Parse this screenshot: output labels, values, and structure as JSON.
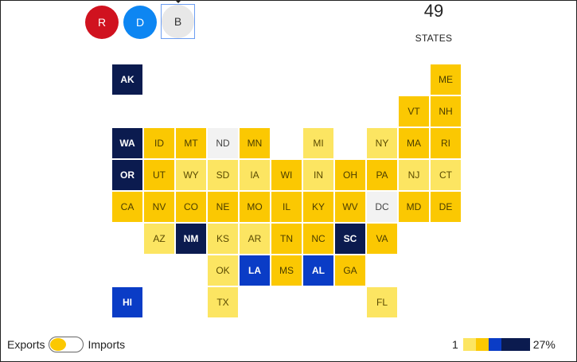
{
  "buttons": {
    "r": "R",
    "d": "D",
    "b": "B"
  },
  "summary": {
    "count": "49",
    "label": "STATES"
  },
  "toggle": {
    "left_label": "Exports",
    "right_label": "Imports",
    "state": "Exports"
  },
  "legend": {
    "min": "1",
    "max": "27%",
    "colors": [
      "#fce562",
      "#fbc802",
      "#0a3cc6",
      "#0b1b4f"
    ]
  },
  "colors": {
    "republican": "#d0121f",
    "democrat": "#0d86f2",
    "no_data": "#f2f2f2"
  },
  "states": [
    {
      "abbr": "AK",
      "row": 0,
      "col": 0,
      "level": 4
    },
    {
      "abbr": "ME",
      "row": 0,
      "col": 10,
      "level": 2
    },
    {
      "abbr": "VT",
      "row": 1,
      "col": 9,
      "level": 2
    },
    {
      "abbr": "NH",
      "row": 1,
      "col": 10,
      "level": 2
    },
    {
      "abbr": "WA",
      "row": 2,
      "col": 0,
      "level": 4
    },
    {
      "abbr": "ID",
      "row": 2,
      "col": 1,
      "level": 2
    },
    {
      "abbr": "MT",
      "row": 2,
      "col": 2,
      "level": 2
    },
    {
      "abbr": "ND",
      "row": 2,
      "col": 3,
      "level": 0
    },
    {
      "abbr": "MN",
      "row": 2,
      "col": 4,
      "level": 2
    },
    {
      "abbr": "MI",
      "row": 2,
      "col": 6,
      "level": 1
    },
    {
      "abbr": "NY",
      "row": 2,
      "col": 8,
      "level": 1
    },
    {
      "abbr": "MA",
      "row": 2,
      "col": 9,
      "level": 2
    },
    {
      "abbr": "RI",
      "row": 2,
      "col": 10,
      "level": 2
    },
    {
      "abbr": "OR",
      "row": 3,
      "col": 0,
      "level": 4
    },
    {
      "abbr": "UT",
      "row": 3,
      "col": 1,
      "level": 2
    },
    {
      "abbr": "WY",
      "row": 3,
      "col": 2,
      "level": 1
    },
    {
      "abbr": "SD",
      "row": 3,
      "col": 3,
      "level": 1
    },
    {
      "abbr": "IA",
      "row": 3,
      "col": 4,
      "level": 1
    },
    {
      "abbr": "WI",
      "row": 3,
      "col": 5,
      "level": 2
    },
    {
      "abbr": "IN",
      "row": 3,
      "col": 6,
      "level": 1
    },
    {
      "abbr": "OH",
      "row": 3,
      "col": 7,
      "level": 2
    },
    {
      "abbr": "PA",
      "row": 3,
      "col": 8,
      "level": 2
    },
    {
      "abbr": "NJ",
      "row": 3,
      "col": 9,
      "level": 1
    },
    {
      "abbr": "CT",
      "row": 3,
      "col": 10,
      "level": 1
    },
    {
      "abbr": "CA",
      "row": 4,
      "col": 0,
      "level": 2
    },
    {
      "abbr": "NV",
      "row": 4,
      "col": 1,
      "level": 2
    },
    {
      "abbr": "CO",
      "row": 4,
      "col": 2,
      "level": 2
    },
    {
      "abbr": "NE",
      "row": 4,
      "col": 3,
      "level": 2
    },
    {
      "abbr": "MO",
      "row": 4,
      "col": 4,
      "level": 2
    },
    {
      "abbr": "IL",
      "row": 4,
      "col": 5,
      "level": 2
    },
    {
      "abbr": "KY",
      "row": 4,
      "col": 6,
      "level": 2
    },
    {
      "abbr": "WV",
      "row": 4,
      "col": 7,
      "level": 2
    },
    {
      "abbr": "DC",
      "row": 4,
      "col": 8,
      "level": 0
    },
    {
      "abbr": "MD",
      "row": 4,
      "col": 9,
      "level": 2
    },
    {
      "abbr": "DE",
      "row": 4,
      "col": 10,
      "level": 2
    },
    {
      "abbr": "AZ",
      "row": 5,
      "col": 1,
      "level": 1
    },
    {
      "abbr": "NM",
      "row": 5,
      "col": 2,
      "level": 4
    },
    {
      "abbr": "KS",
      "row": 5,
      "col": 3,
      "level": 1
    },
    {
      "abbr": "AR",
      "row": 5,
      "col": 4,
      "level": 1
    },
    {
      "abbr": "TN",
      "row": 5,
      "col": 5,
      "level": 2
    },
    {
      "abbr": "NC",
      "row": 5,
      "col": 6,
      "level": 2
    },
    {
      "abbr": "SC",
      "row": 5,
      "col": 7,
      "level": 4
    },
    {
      "abbr": "VA",
      "row": 5,
      "col": 8,
      "level": 2
    },
    {
      "abbr": "OK",
      "row": 6,
      "col": 3,
      "level": 1
    },
    {
      "abbr": "LA",
      "row": 6,
      "col": 4,
      "level": 3
    },
    {
      "abbr": "MS",
      "row": 6,
      "col": 5,
      "level": 2
    },
    {
      "abbr": "AL",
      "row": 6,
      "col": 6,
      "level": 3
    },
    {
      "abbr": "GA",
      "row": 6,
      "col": 7,
      "level": 2
    },
    {
      "abbr": "HI",
      "row": 7,
      "col": 0,
      "level": 3
    },
    {
      "abbr": "TX",
      "row": 7,
      "col": 3,
      "level": 1
    },
    {
      "abbr": "FL",
      "row": 7,
      "col": 8,
      "level": 1
    }
  ]
}
